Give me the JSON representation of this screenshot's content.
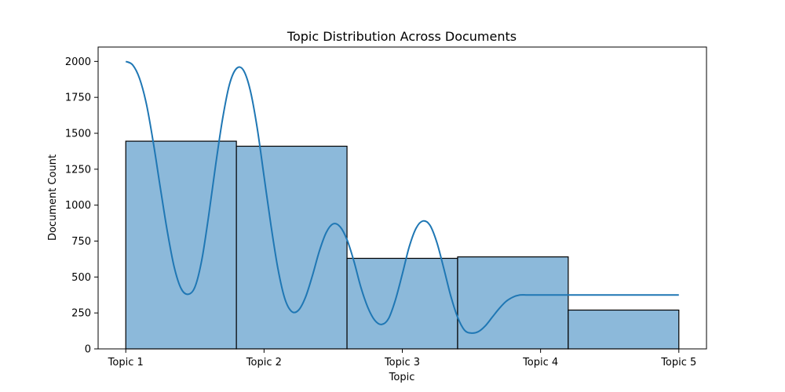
{
  "chart_data": {
    "type": "bar",
    "title": "Topic Distribution Across Documents",
    "xlabel": "Topic",
    "ylabel": "Document Count",
    "categories": [
      "Topic 1",
      "Topic 2",
      "Topic 3",
      "Topic 4",
      "Topic 5"
    ],
    "values": [
      1445,
      1410,
      630,
      640,
      270
    ],
    "ylim": [
      0,
      2100
    ],
    "yticks": [
      0,
      250,
      500,
      750,
      1000,
      1250,
      1500,
      1750,
      2000
    ],
    "xlim": [
      -0.2,
      4.2
    ],
    "bin_edges": [
      0,
      0.8,
      1.6,
      2.4,
      3.2,
      4.0
    ],
    "category_positions": [
      0,
      1,
      2,
      3,
      4
    ],
    "kde_curve": {
      "x": [
        0,
        0.05,
        0.1,
        0.15,
        0.2,
        0.25,
        0.3,
        0.35,
        0.4,
        0.45,
        0.5,
        0.55,
        0.6,
        0.65,
        0.7,
        0.75,
        0.8,
        0.85,
        0.9,
        0.95,
        1.0,
        1.05,
        1.1,
        1.15,
        1.2,
        1.25,
        1.3,
        1.35,
        1.4,
        1.45,
        1.5,
        1.55,
        1.6,
        1.65,
        1.7,
        1.75,
        1.8,
        1.85,
        1.9,
        1.95,
        2.0,
        2.05,
        2.1,
        2.15,
        2.2,
        2.25,
        2.3,
        2.35,
        2.4,
        2.45,
        2.5,
        2.55,
        2.6,
        2.65,
        2.7,
        2.75,
        2.8,
        2.85,
        2.9,
        2.95,
        3.0,
        3.05,
        3.1,
        3.15,
        3.2,
        3.25,
        3.3,
        3.35,
        3.4,
        3.45,
        3.5,
        3.55,
        3.6,
        3.65,
        3.7,
        3.75,
        3.8,
        3.85,
        3.9,
        3.95,
        4.0
      ],
      "y": [
        2000,
        1975,
        1880,
        1700,
        1430,
        1120,
        820,
        570,
        420,
        380,
        430,
        620,
        930,
        1280,
        1600,
        1840,
        1950,
        1940,
        1800,
        1540,
        1200,
        860,
        560,
        350,
        260,
        270,
        360,
        510,
        680,
        810,
        870,
        850,
        760,
        610,
        430,
        290,
        200,
        170,
        210,
        340,
        520,
        710,
        840,
        890,
        860,
        740,
        560,
        370,
        220,
        130,
        110,
        120,
        160,
        220,
        280,
        330,
        360,
        375,
        375,
        375,
        375,
        375,
        375,
        375,
        375,
        375,
        375,
        375,
        375,
        375,
        375,
        375,
        375,
        375,
        375,
        375,
        375,
        375,
        375,
        375,
        375
      ]
    },
    "colors": {
      "bar_fill": "#8cb9da",
      "bar_edge": "#000000",
      "kde_line": "#1f77b4"
    },
    "grid": false,
    "legend": "none"
  }
}
